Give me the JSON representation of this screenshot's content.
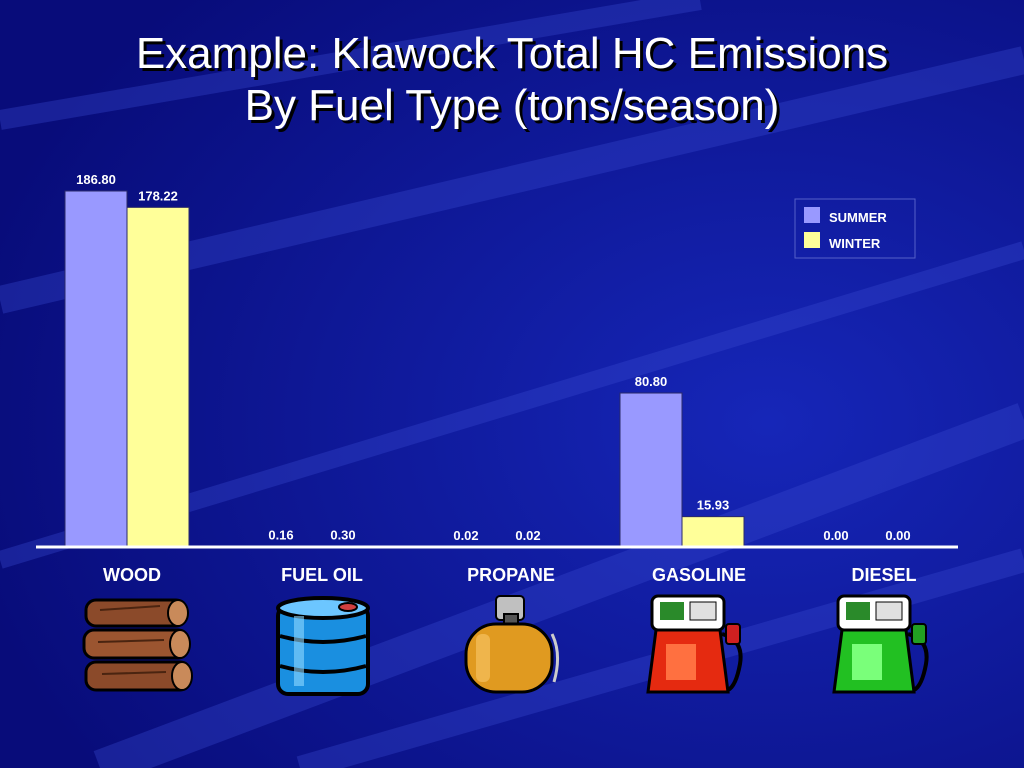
{
  "colors": {
    "background": "#0a0f8c",
    "summer": "#9999ff",
    "winter": "#ffff99",
    "text": "#ffffff"
  },
  "title_lines": [
    "Example: Klawock Total HC Emissions",
    "By Fuel Type (tons/season)"
  ],
  "chart_data": {
    "type": "bar",
    "title": "Example: Klawock Total HC Emissions By Fuel Type (tons/season)",
    "categories": [
      "WOOD",
      "FUEL OIL",
      "PROPANE",
      "GASOLINE",
      "DIESEL"
    ],
    "series": [
      {
        "name": "SUMMER",
        "values": [
          186.8,
          0.16,
          0.02,
          80.8,
          0.0
        ],
        "labels": [
          "186.80",
          "0.16",
          "0.02",
          "80.80",
          "0.00"
        ]
      },
      {
        "name": "WINTER",
        "values": [
          178.22,
          0.3,
          0.02,
          15.93,
          0.0
        ],
        "labels": [
          "178.22",
          "0.30",
          "0.02",
          "15.93",
          "0.00"
        ]
      }
    ],
    "ylim": [
      0,
      186.8
    ],
    "grid": false,
    "legend": "top-right",
    "xlabel": "",
    "ylabel": ""
  },
  "category_icons": [
    "firewood-logs-icon",
    "oil-barrel-icon",
    "propane-tank-icon",
    "gasoline-pump-icon",
    "diesel-pump-icon"
  ]
}
